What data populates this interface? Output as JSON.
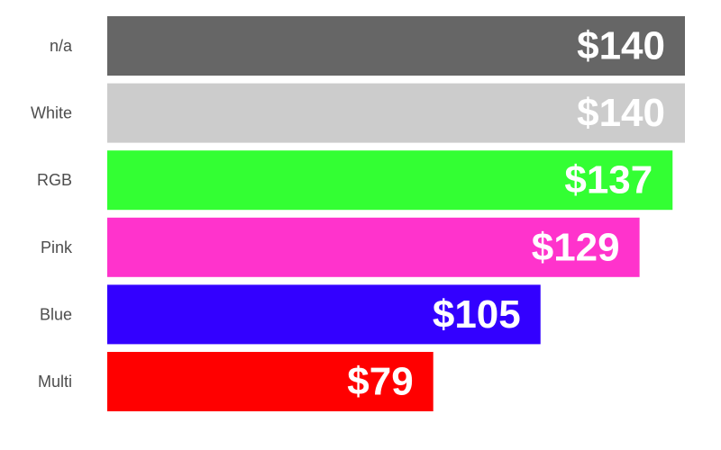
{
  "chart_data": {
    "type": "bar",
    "orientation": "horizontal",
    "categories": [
      "n/a",
      "White",
      "RGB",
      "Pink",
      "Blue",
      "Multi"
    ],
    "values": [
      140,
      140,
      137,
      129,
      105,
      79
    ],
    "value_labels": [
      "$140",
      "$140",
      "$137",
      "$129",
      "$105",
      "$79"
    ],
    "colors": [
      "#666666",
      "#cccccc",
      "#33ff33",
      "#ff33cc",
      "#3300ff",
      "#ff0000"
    ],
    "xlim": [
      0,
      140
    ],
    "title": "",
    "xlabel": "",
    "ylabel": "",
    "grid": false,
    "legend": "none"
  }
}
